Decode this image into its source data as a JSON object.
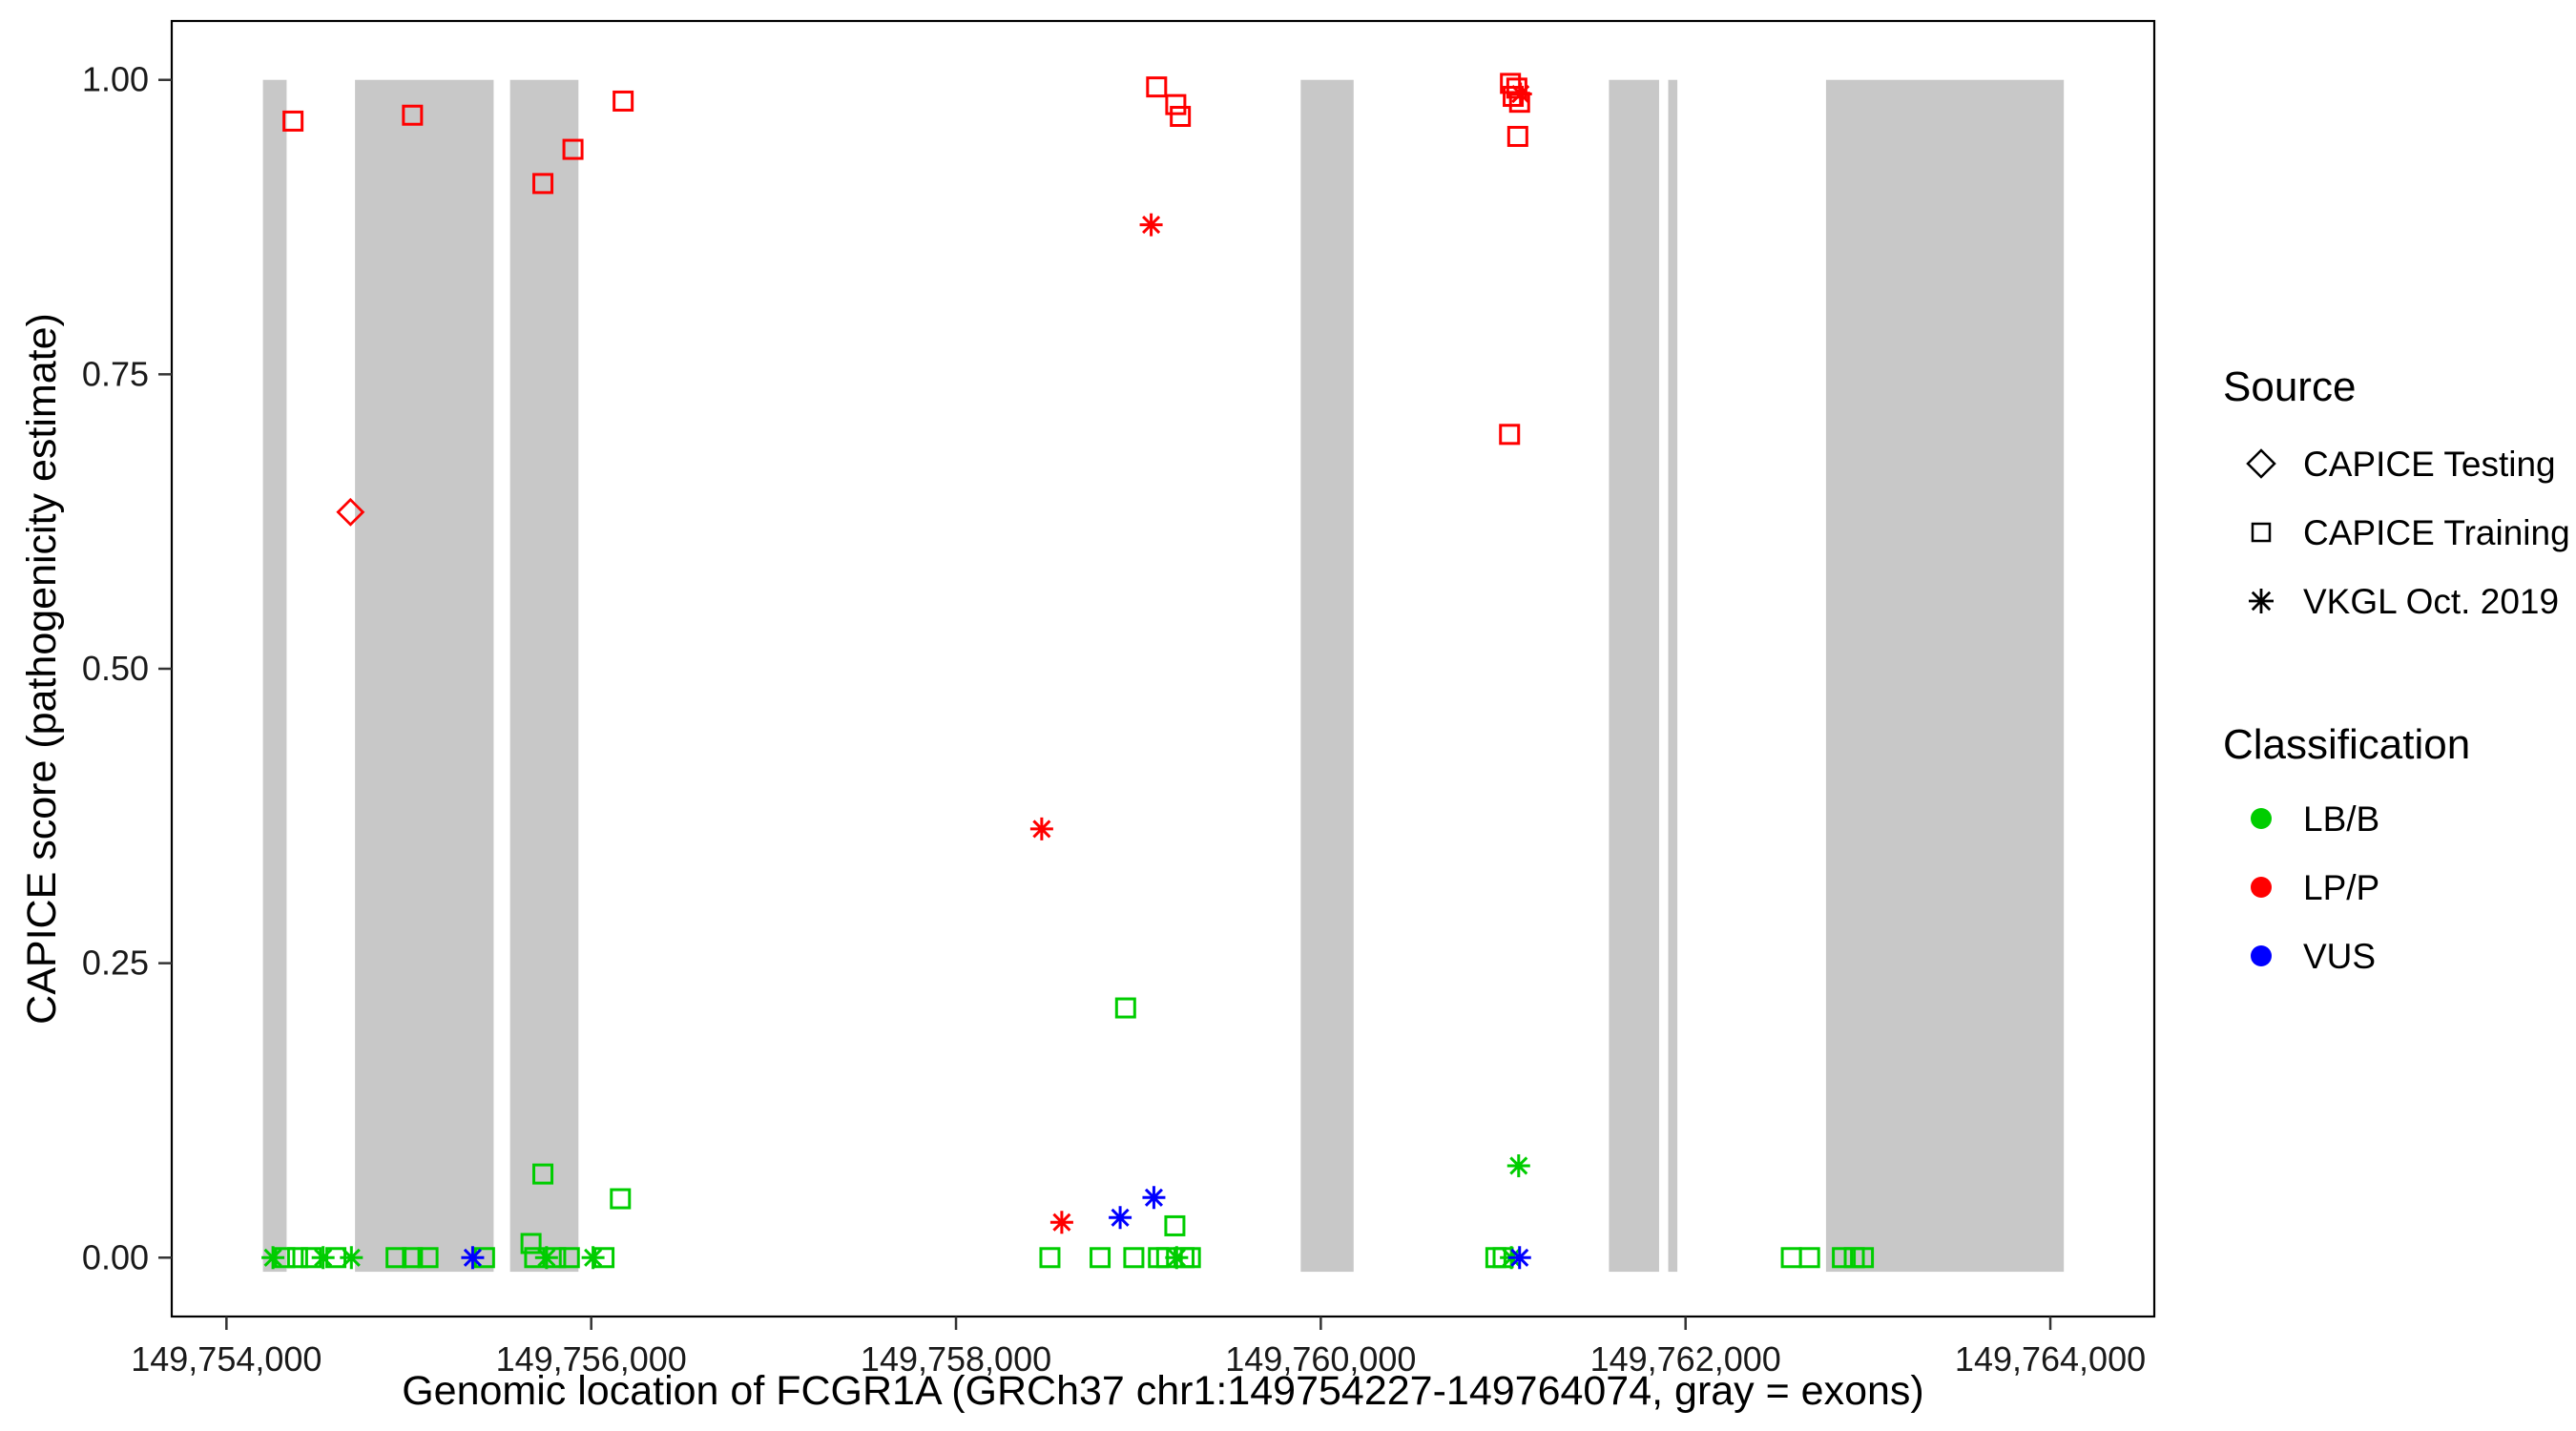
{
  "chart_data": {
    "type": "scatter",
    "title": "",
    "xlabel": "Genomic location of FCGR1A (GRCh37 chr1:149754227-149764074, gray = exons)",
    "ylabel": "CAPICE score (pathogenicity estimate)",
    "xlim": [
      149753700,
      149764570
    ],
    "ylim": [
      -0.05,
      1.05
    ],
    "x_ticks": [
      149754000,
      149756000,
      149758000,
      149760000,
      149762000,
      149764000
    ],
    "x_tick_labels": [
      "149,754,000",
      "149,756,000",
      "149,758,000",
      "149,760,000",
      "149,762,000",
      "149,764,000"
    ],
    "y_ticks": [
      0.0,
      0.25,
      0.5,
      0.75,
      1.0
    ],
    "y_tick_labels": [
      "0.00",
      "0.25",
      "0.50",
      "0.75",
      "1.00"
    ],
    "grid": "off",
    "legend_position": "right",
    "exon_y": [
      -0.012,
      1.0
    ],
    "exons": [
      {
        "start": 149754200,
        "end": 149754330
      },
      {
        "start": 149754705,
        "end": 149755465
      },
      {
        "start": 149755555,
        "end": 149755930
      },
      {
        "start": 149759890,
        "end": 149760180
      },
      {
        "start": 149761580,
        "end": 149761855
      },
      {
        "start": 149761905,
        "end": 149761955
      },
      {
        "start": 149762770,
        "end": 149764074
      }
    ],
    "points": [
      {
        "x": 149758930,
        "y": 0.212,
        "shape": "square",
        "class": "LB/B"
      },
      {
        "x": 149755735,
        "y": 0.071,
        "shape": "square",
        "class": "LB/B"
      },
      {
        "x": 149756160,
        "y": 0.05,
        "shape": "square",
        "class": "LB/B"
      },
      {
        "x": 149759200,
        "y": 0.027,
        "shape": "square",
        "class": "LB/B"
      },
      {
        "x": 149754320,
        "y": 0.0,
        "shape": "square",
        "class": "LB/B"
      },
      {
        "x": 149754390,
        "y": 0.0,
        "shape": "square",
        "class": "LB/B"
      },
      {
        "x": 149754465,
        "y": 0.0,
        "shape": "square",
        "class": "LB/B"
      },
      {
        "x": 149754600,
        "y": 0.0,
        "shape": "square",
        "class": "LB/B"
      },
      {
        "x": 149754930,
        "y": 0.0,
        "shape": "square",
        "class": "LB/B"
      },
      {
        "x": 149755020,
        "y": 0.0,
        "shape": "square",
        "class": "LB/B"
      },
      {
        "x": 149755105,
        "y": 0.0,
        "shape": "square",
        "class": "LB/B"
      },
      {
        "x": 149755415,
        "y": 0.0,
        "shape": "square",
        "class": "LB/B"
      },
      {
        "x": 149755670,
        "y": 0.012,
        "shape": "square",
        "class": "LB/B"
      },
      {
        "x": 149755690,
        "y": 0.0,
        "shape": "square",
        "class": "LB/B"
      },
      {
        "x": 149755805,
        "y": 0.0,
        "shape": "square",
        "class": "LB/B"
      },
      {
        "x": 149755880,
        "y": 0.0,
        "shape": "square",
        "class": "LB/B"
      },
      {
        "x": 149756070,
        "y": 0.0,
        "shape": "square",
        "class": "LB/B"
      },
      {
        "x": 149758515,
        "y": 0.0,
        "shape": "square",
        "class": "LB/B"
      },
      {
        "x": 149758790,
        "y": 0.0,
        "shape": "square",
        "class": "LB/B"
      },
      {
        "x": 149758975,
        "y": 0.0,
        "shape": "square",
        "class": "LB/B"
      },
      {
        "x": 149759110,
        "y": 0.0,
        "shape": "square",
        "class": "LB/B"
      },
      {
        "x": 149759155,
        "y": 0.0,
        "shape": "square",
        "class": "LB/B"
      },
      {
        "x": 149759250,
        "y": 0.0,
        "shape": "square",
        "class": "LB/B"
      },
      {
        "x": 149759285,
        "y": 0.0,
        "shape": "square",
        "class": "LB/B"
      },
      {
        "x": 149760960,
        "y": 0.0,
        "shape": "square",
        "class": "LB/B"
      },
      {
        "x": 149761000,
        "y": 0.0,
        "shape": "square",
        "class": "LB/B"
      },
      {
        "x": 149762580,
        "y": 0.0,
        "shape": "square",
        "class": "LB/B"
      },
      {
        "x": 149762680,
        "y": 0.0,
        "shape": "square",
        "class": "LB/B"
      },
      {
        "x": 149762860,
        "y": 0.0,
        "shape": "square",
        "class": "LB/B"
      },
      {
        "x": 149762925,
        "y": 0.0,
        "shape": "square",
        "class": "LB/B"
      },
      {
        "x": 149762975,
        "y": 0.0,
        "shape": "square",
        "class": "LB/B"
      },
      {
        "x": 149754255,
        "y": 0.0,
        "shape": "asterisk",
        "class": "LB/B"
      },
      {
        "x": 149754530,
        "y": 0.0,
        "shape": "asterisk",
        "class": "LB/B"
      },
      {
        "x": 149754685,
        "y": 0.0,
        "shape": "asterisk",
        "class": "LB/B"
      },
      {
        "x": 149755755,
        "y": 0.0,
        "shape": "asterisk",
        "class": "LB/B"
      },
      {
        "x": 149756010,
        "y": 0.0,
        "shape": "asterisk",
        "class": "LB/B"
      },
      {
        "x": 149759210,
        "y": 0.0,
        "shape": "asterisk",
        "class": "LB/B"
      },
      {
        "x": 149761045,
        "y": 0.0,
        "shape": "asterisk",
        "class": "LB/B"
      },
      {
        "x": 149761085,
        "y": 0.078,
        "shape": "asterisk",
        "class": "LB/B"
      },
      {
        "x": 149755350,
        "y": 0.0,
        "shape": "asterisk",
        "class": "VUS"
      },
      {
        "x": 149758900,
        "y": 0.034,
        "shape": "asterisk",
        "class": "VUS"
      },
      {
        "x": 149759085,
        "y": 0.051,
        "shape": "asterisk",
        "class": "VUS"
      },
      {
        "x": 149761090,
        "y": 0.0,
        "shape": "asterisk",
        "class": "VUS"
      },
      {
        "x": 149754365,
        "y": 0.965,
        "shape": "square",
        "class": "LP/P"
      },
      {
        "x": 149755020,
        "y": 0.97,
        "shape": "square",
        "class": "LP/P"
      },
      {
        "x": 149755735,
        "y": 0.912,
        "shape": "square",
        "class": "LP/P"
      },
      {
        "x": 149755900,
        "y": 0.941,
        "shape": "square",
        "class": "LP/P"
      },
      {
        "x": 149756175,
        "y": 0.982,
        "shape": "square",
        "class": "LP/P"
      },
      {
        "x": 149759100,
        "y": 0.994,
        "shape": "square",
        "class": "LP/P"
      },
      {
        "x": 149759205,
        "y": 0.979,
        "shape": "square",
        "class": "LP/P"
      },
      {
        "x": 149759230,
        "y": 0.969,
        "shape": "square",
        "class": "LP/P"
      },
      {
        "x": 149761040,
        "y": 0.997,
        "shape": "square",
        "class": "LP/P"
      },
      {
        "x": 149761075,
        "y": 0.993,
        "shape": "square",
        "class": "LP/P"
      },
      {
        "x": 149761055,
        "y": 0.986,
        "shape": "square",
        "class": "LP/P"
      },
      {
        "x": 149761090,
        "y": 0.981,
        "shape": "square",
        "class": "LP/P"
      },
      {
        "x": 149761080,
        "y": 0.952,
        "shape": "square",
        "class": "LP/P"
      },
      {
        "x": 149761035,
        "y": 0.699,
        "shape": "square",
        "class": "LP/P"
      },
      {
        "x": 149754680,
        "y": 0.633,
        "shape": "diamond",
        "class": "LP/P"
      },
      {
        "x": 149759070,
        "y": 0.877,
        "shape": "asterisk",
        "class": "LP/P"
      },
      {
        "x": 149758470,
        "y": 0.364,
        "shape": "asterisk",
        "class": "LP/P"
      },
      {
        "x": 149758580,
        "y": 0.03,
        "shape": "asterisk",
        "class": "LP/P"
      },
      {
        "x": 149761095,
        "y": 0.988,
        "shape": "asterisk",
        "class": "LP/P"
      }
    ]
  },
  "legend": {
    "source_title": "Source",
    "source_items": [
      {
        "label": "CAPICE Testing",
        "shape": "diamond"
      },
      {
        "label": "CAPICE Training",
        "shape": "square"
      },
      {
        "label": "VKGL Oct. 2019",
        "shape": "asterisk"
      }
    ],
    "classification_title": "Classification",
    "classification_items": [
      {
        "label": "LB/B",
        "color": "#00CD00"
      },
      {
        "label": "LP/P",
        "color": "#FF0000"
      },
      {
        "label": "VUS",
        "color": "#0000FF"
      }
    ]
  },
  "colors": {
    "exon_gray": "#C8C8C8",
    "panel_border": "#000000",
    "tick_mark": "#333333",
    "classification": {
      "LB/B": "#00CD00",
      "LP/P": "#FF0000",
      "VUS": "#0000FF"
    }
  }
}
